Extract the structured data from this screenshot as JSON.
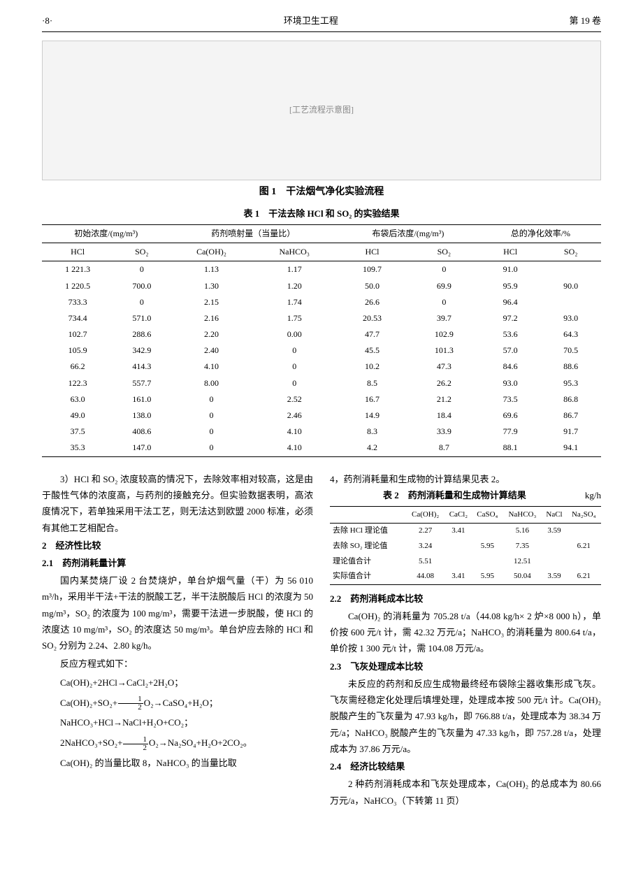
{
  "header": {
    "page_num": "·8·",
    "journal": "环境卫生工程",
    "volume": "第 19 卷"
  },
  "figure1": {
    "caption": "图 1　干法烟气净化实验流程",
    "placeholder": "[工艺流程示意图]"
  },
  "table1": {
    "caption": "表 1　干法去除 HCl 和 SO₂ 的实验结果",
    "group_headers": [
      "初始浓度/(mg/m³)",
      "药剂喷射量（当量比）",
      "布袋后浓度/(mg/m³)",
      "总的净化效率/%"
    ],
    "sub_headers": [
      "HCl",
      "SO₂",
      "Ca(OH)₂",
      "NaHCO₃",
      "HCl",
      "SO₂",
      "HCl",
      "SO₂"
    ],
    "rows": [
      [
        "1 221.3",
        "0",
        "1.13",
        "1.17",
        "109.7",
        "0",
        "91.0",
        ""
      ],
      [
        "1 220.5",
        "700.0",
        "1.30",
        "1.20",
        "50.0",
        "69.9",
        "95.9",
        "90.0"
      ],
      [
        "733.3",
        "0",
        "2.15",
        "1.74",
        "26.6",
        "0",
        "96.4",
        ""
      ],
      [
        "734.4",
        "571.0",
        "2.16",
        "1.75",
        "20.53",
        "39.7",
        "97.2",
        "93.0"
      ],
      [
        "102.7",
        "288.6",
        "2.20",
        "0.00",
        "47.7",
        "102.9",
        "53.6",
        "64.3"
      ],
      [
        "105.9",
        "342.9",
        "2.40",
        "0",
        "45.5",
        "101.3",
        "57.0",
        "70.5"
      ],
      [
        "66.2",
        "414.3",
        "4.10",
        "0",
        "10.2",
        "47.3",
        "84.6",
        "88.6"
      ],
      [
        "122.3",
        "557.7",
        "8.00",
        "0",
        "8.5",
        "26.2",
        "93.0",
        "95.3"
      ],
      [
        "63.0",
        "161.0",
        "0",
        "2.52",
        "16.7",
        "21.2",
        "73.5",
        "86.8"
      ],
      [
        "49.0",
        "138.0",
        "0",
        "2.46",
        "14.9",
        "18.4",
        "69.6",
        "86.7"
      ],
      [
        "37.5",
        "408.6",
        "0",
        "4.10",
        "8.3",
        "33.9",
        "77.9",
        "91.7"
      ],
      [
        "35.3",
        "147.0",
        "0",
        "4.10",
        "4.2",
        "8.7",
        "88.1",
        "94.1"
      ]
    ]
  },
  "left_col": {
    "para1": "3）HCl 和 SO₂ 浓度较高的情况下，去除效率相对较高，这是由于酸性气体的浓度高，与药剂的接触充分。但实验数据表明，高浓度情况下，若单独采用干法工艺，则无法达到欧盟 2000 标准，必须有其他工艺相配合。",
    "h2": "2　经济性比较",
    "h21": "2.1　药剂消耗量计算",
    "para2": "国内某焚烧厂设 2 台焚烧炉，单台炉烟气量（干）为 56 010 m³/h，采用半干法+干法的脱酸工艺，半干法脱酸后 HCl 的浓度为 50 mg/m³，SO₂ 的浓度为 100 mg/m³，需要干法进一步脱酸，使 HCl 的浓度达 10 mg/m³，SO₂ 的浓度达 50 mg/m³。单台炉应去除的 HCl 和 SO₂ 分别为 2.24、2.80 kg/h。",
    "eq_intro": "反应方程式如下：",
    "eq1_a": "Ca(OH)₂+2HCl→CaCl₂+2H₂O；",
    "eq2_a": "Ca(OH)₂+SO₂+",
    "eq2_b": "O₂→CaSO₄+H₂O；",
    "eq3_a": "NaHCO₃+HCl→NaCl+H₂O+CO₂；",
    "eq4_a": "2NaHCO₃+SO₂+",
    "eq4_b": "O₂→Na₂SO₄+H₂O+2CO₂。",
    "para3": "Ca(OH)₂ 的当量比取 8，NaHCO₃ 的当量比取"
  },
  "right_col": {
    "para1": "4，药剂消耗量和生成物的计算结果见表 2。",
    "table2": {
      "caption": "表 2　药剂消耗量和生成物计算结果",
      "unit": "kg/h",
      "headers": [
        "",
        "Ca(OH)₂",
        "CaCl₂",
        "CaSO₄",
        "NaHCO₃",
        "NaCl",
        "Na₂SO₄"
      ],
      "rows": [
        [
          "去除 HCl 理论值",
          "2.27",
          "3.41",
          "",
          "5.16",
          "3.59",
          ""
        ],
        [
          "去除 SO₂ 理论值",
          "3.24",
          "",
          "5.95",
          "7.35",
          "",
          "6.21"
        ],
        [
          "理论值合计",
          "5.51",
          "",
          "",
          "12.51",
          "",
          ""
        ],
        [
          "实际值合计",
          "44.08",
          "3.41",
          "5.95",
          "50.04",
          "3.59",
          "6.21"
        ]
      ]
    },
    "h22": "2.2　药剂消耗成本比较",
    "para2": "Ca(OH)₂ 的消耗量为 705.28 t/a（44.08 kg/h× 2 炉×8 000 h），单价按 600 元/t 计，需 42.32 万元/a；NaHCO₃ 的消耗量为 800.64 t/a，单价按 1 300 元/t 计，需 104.08 万元/a。",
    "h23": "2.3　飞灰处理成本比较",
    "para3": "未反应的药剂和反应生成物最终经布袋除尘器收集形成飞灰。飞灰需经稳定化处理后填埋处理，处理成本按 500 元/t 计。Ca(OH)₂ 脱酸产生的飞灰量为 47.93 kg/h，即 766.88 t/a，处理成本为 38.34 万元/a；NaHCO₃ 脱酸产生的飞灰量为 47.33 kg/h，即 757.28 t/a，处理成本为 37.86 万元/a。",
    "h24": "2.4　经济比较结果",
    "para4": "2 种药剂消耗成本和飞灰处理成本，Ca(OH)₂ 的总成本为 80.66 万元/a，NaHCO₃（下转第 11 页）"
  }
}
